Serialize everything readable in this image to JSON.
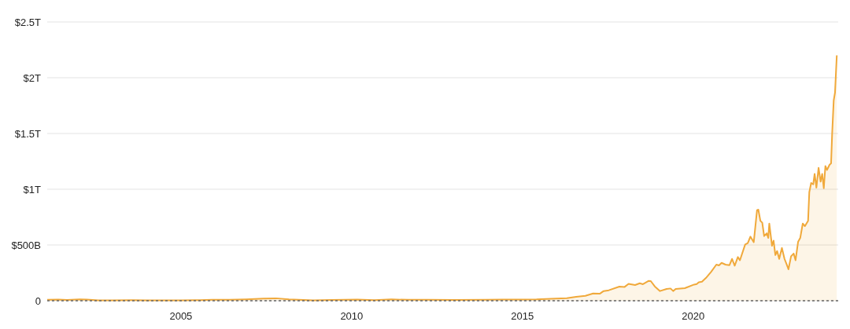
{
  "chart_data": {
    "type": "area",
    "x": [
      "2001-02-01",
      "2001-06-01",
      "2001-09-01",
      "2002-01-15",
      "2002-04-01",
      "2002-08-01",
      "2003-01-01",
      "2003-08-01",
      "2004-01-01",
      "2004-08-01",
      "2005-01-01",
      "2005-06-01",
      "2005-12-01",
      "2006-06-01",
      "2006-12-01",
      "2007-06-01",
      "2007-10-15",
      "2008-03-01",
      "2008-11-15",
      "2009-06-01",
      "2010-03-01",
      "2010-09-01",
      "2011-03-01",
      "2011-09-01",
      "2012-04-01",
      "2013-01-01",
      "2013-12-01",
      "2014-06-01",
      "2015-01-01",
      "2015-06-01",
      "2015-11-01",
      "2016-04-20",
      "2016-07-29",
      "2016-11-04",
      "2017-01-26",
      "2017-04-07",
      "2017-05-19",
      "2017-07-13",
      "2017-11-03",
      "2017-12-29",
      "2018-02-09",
      "2018-04-20",
      "2018-06-09",
      "2018-07-13",
      "2018-09-13",
      "2018-10-05",
      "2018-11-16",
      "2019-01-11",
      "2019-03-23",
      "2019-05-04",
      "2019-06-01",
      "2019-06-28",
      "2019-10-04",
      "2020-01-11",
      "2020-02-08",
      "2020-03-01",
      "2020-04-04",
      "2020-05-16",
      "2020-07-10",
      "2020-09-05",
      "2020-10-03",
      "2020-10-31",
      "2020-12-12",
      "2021-01-23",
      "2021-02-20",
      "2021-03-20",
      "2021-04-23",
      "2021-05-15",
      "2021-07-10",
      "2021-08-07",
      "2021-09-04",
      "2021-10-10",
      "2021-11-14",
      "2021-11-28",
      "2021-12-20",
      "2022-01-09",
      "2022-01-29",
      "2022-02-26",
      "2022-03-14",
      "2022-03-25",
      "2022-04-23",
      "2022-05-10",
      "2022-05-29",
      "2022-06-17",
      "2022-07-09",
      "2022-08-07",
      "2022-09-04",
      "2022-09-26",
      "2022-10-16",
      "2022-11-13",
      "2022-12-11",
      "2022-12-31",
      "2023-01-27",
      "2023-02-19",
      "2023-03-18",
      "2023-04-10",
      "2023-05-14",
      "2023-05-27",
      "2023-06-16",
      "2023-07-08",
      "2023-07-23",
      "2023-08-11",
      "2023-09-03",
      "2023-09-25",
      "2023-10-12",
      "2023-10-29",
      "2023-11-15",
      "2023-12-02",
      "2023-12-30",
      "2024-01-15",
      "2024-01-26",
      "2024-02-12",
      "2024-02-26",
      "2024-03-16"
    ],
    "series": [
      {
        "color": "#f0a93b",
        "values": [
          8000000000.0,
          10000000000.0,
          7000000000.0,
          12000000000.0,
          10000000000.0,
          4000000000.0,
          3000000000.0,
          5000000000.0,
          4000000000.0,
          3000000000.0,
          4000000000.0,
          5000000000.0,
          8000000000.0,
          9000000000.0,
          13000000000.0,
          19000000000.0,
          22000000000.0,
          12000000000.0,
          4000000000.0,
          7000000000.0,
          10000000000.0,
          6000000000.0,
          12000000000.0,
          8000000000.0,
          8000000000.0,
          7000000000.0,
          9000000000.0,
          10000000000.0,
          11000000000.0,
          12000000000.0,
          18000000000.0,
          23000000000.0,
          35000000000.0,
          44000000000.0,
          65000000000.0,
          63000000000.0,
          87000000000.0,
          94000000000.0,
          127000000000.0,
          124000000000.0,
          152000000000.0,
          141000000000.0,
          157000000000.0,
          148000000000.0,
          178000000000.0,
          176000000000.0,
          129000000000.0,
          87000000000.0,
          106000000000.0,
          110000000000.0,
          87000000000.0,
          106000000000.0,
          113000000000.0,
          145000000000.0,
          150000000000.0,
          166000000000.0,
          171000000000.0,
          204000000000.0,
          258000000000.0,
          324000000000.0,
          317000000000.0,
          340000000000.0,
          324000000000.0,
          319000000000.0,
          375000000000.0,
          314000000000.0,
          392000000000.0,
          363000000000.0,
          504000000000.0,
          516000000000.0,
          575000000000.0,
          525000000000.0,
          812000000000.0,
          817000000000.0,
          716000000000.0,
          700000000000.0,
          580000000000.0,
          605000000000.0,
          563000000000.0,
          692000000000.0,
          493000000000.0,
          539000000000.0,
          410000000000.0,
          446000000000.0,
          375000000000.0,
          474000000000.0,
          375000000000.0,
          328000000000.0,
          282000000000.0,
          399000000000.0,
          423000000000.0,
          363000000000.0,
          528000000000.0,
          563000000000.0,
          692000000000.0,
          669000000000.0,
          716000000000.0,
          974000000000.0,
          1056000000000.0,
          1044000000000.0,
          1138000000000.0,
          1014000000000.0,
          1192000000000.0,
          1068000000000.0,
          1138000000000.0,
          1009000000000.0,
          1208000000000.0,
          1173000000000.0,
          1220000000000.0,
          1232000000000.0,
          1490000000000.0,
          1796000000000.0,
          1866000000000.0,
          2201000000000.0
        ]
      }
    ],
    "xlim": [
      "2001-02-01",
      "2024-03-31"
    ],
    "xticks": [
      "2005",
      "2010",
      "2015",
      "2020"
    ],
    "ylim": [
      0,
      2500000000000.0
    ],
    "yticks": [
      0,
      {
        "value": 500000000000.0,
        "label": "$500B"
      },
      {
        "value": 1000000000000.0,
        "label": "$1T"
      },
      {
        "value": 1500000000000.0,
        "label": "$1.5T"
      },
      {
        "value": 2000000000000.0,
        "label": "$2T"
      },
      {
        "value": 2500000000000.0,
        "label": "$2.5T"
      }
    ],
    "grid": "y",
    "ref_lines": [
      {
        "axis": "y",
        "value": 0,
        "color": "#666666",
        "line_style": "dashed"
      }
    ]
  }
}
